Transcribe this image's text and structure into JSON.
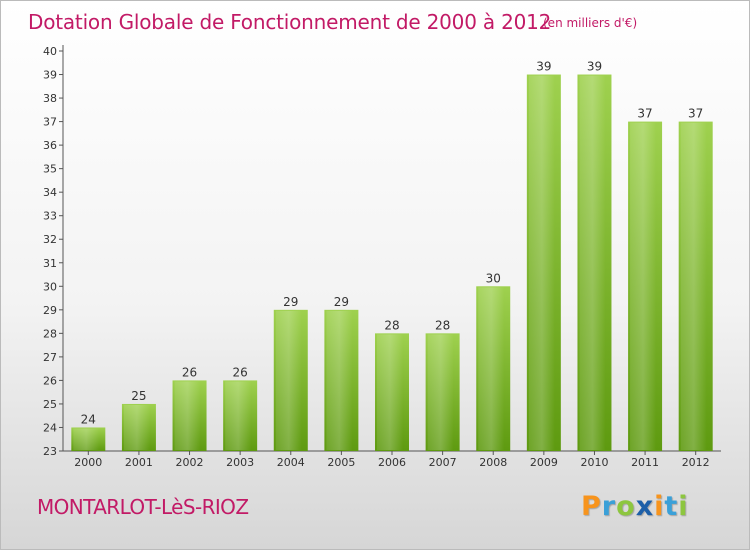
{
  "chart_data": {
    "type": "bar",
    "title": "Dotation Globale de Fonctionnement de 2000 à 2012",
    "subtitle": "(en milliers d'€)",
    "categories": [
      "2000",
      "2001",
      "2002",
      "2003",
      "2004",
      "2005",
      "2006",
      "2007",
      "2008",
      "2009",
      "2010",
      "2011",
      "2012"
    ],
    "values": [
      24,
      25,
      26,
      26,
      29,
      29,
      28,
      28,
      30,
      39,
      39,
      37,
      37
    ],
    "ylim": [
      23,
      40
    ],
    "yticks": [
      23,
      24,
      25,
      26,
      27,
      28,
      29,
      30,
      31,
      32,
      33,
      34,
      35,
      36,
      37,
      38,
      39,
      40
    ],
    "grid": false,
    "bar_color": "#8ec63f"
  },
  "footer": {
    "commune": "MONTARLOT-LèS-RIOZ",
    "logo_letters": [
      "P",
      "r",
      "o",
      "x",
      "i",
      "t",
      "i"
    ],
    "logo_colors": [
      "#f7941d",
      "#3aa0d8",
      "#8dc63f",
      "#1d5fa8",
      "#f7941d",
      "#3aa0d8",
      "#8dc63f"
    ]
  }
}
